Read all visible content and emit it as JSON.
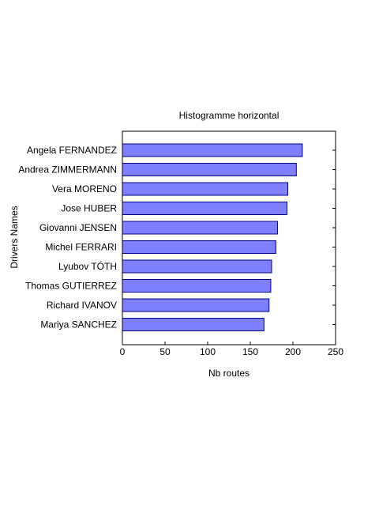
{
  "chart_data": {
    "type": "bar",
    "orientation": "horizontal",
    "title": "Histogramme horizontal",
    "xlabel": "Nb routes",
    "ylabel": "Drivers Names",
    "xlim": [
      0,
      250
    ],
    "xticks": [
      0,
      50,
      100,
      150,
      200,
      250
    ],
    "grid": false,
    "categories": [
      "Angela FERNANDEZ",
      "Andrea ZIMMERMANN",
      "Vera MORENO",
      "Jose HUBER",
      "Giovanni JENSEN",
      "Michel FERRARI",
      "Lyubov TÓTH",
      "Thomas GUTIERREZ",
      "Richard IVANOV",
      "Mariya SANCHEZ"
    ],
    "values": [
      211,
      204,
      194,
      193,
      182,
      180,
      175,
      174,
      172,
      166
    ],
    "bar_color": "#7f7fff",
    "bar_edge_color": "#00008b"
  }
}
